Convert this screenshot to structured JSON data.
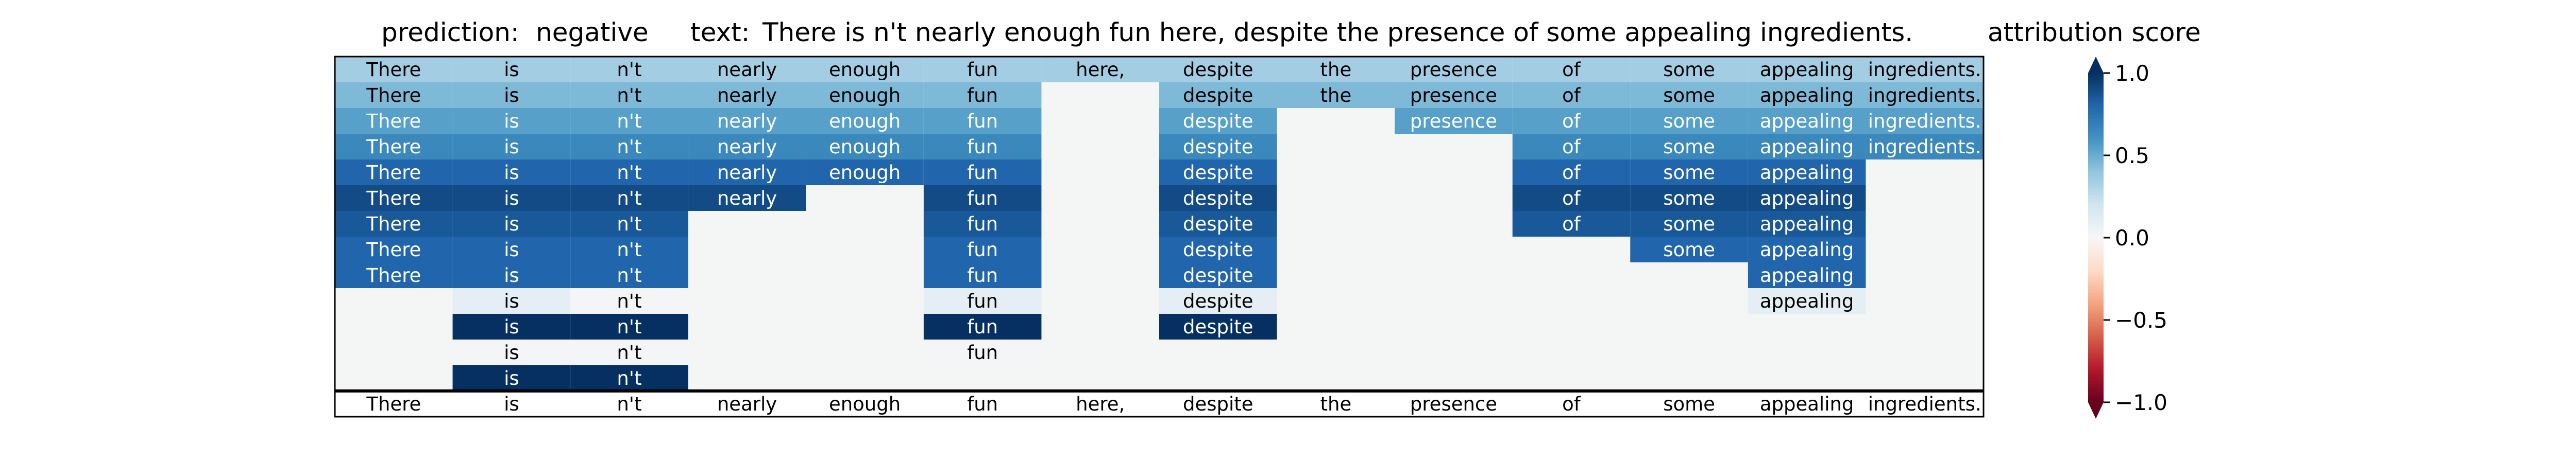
{
  "header": {
    "prediction_label": "prediction:",
    "prediction_value": "negative",
    "text_label": "text:",
    "text_value": "There is n't nearly enough fun here, despite the presence of some appealing ingredients.",
    "colorbar_title": "attribution score"
  },
  "chart_data": {
    "type": "heatmap",
    "title": "",
    "tokens": [
      "There",
      "is",
      "n't",
      "nearly",
      "enough",
      "fun",
      "here,",
      "despite",
      "the",
      "presence",
      "of",
      "some",
      "appealing",
      "ingredients."
    ],
    "rows": [
      [
        0.35,
        0.35,
        0.35,
        0.35,
        0.35,
        0.35,
        0.35,
        0.35,
        0.35,
        0.35,
        0.35,
        0.35,
        0.35,
        0.35
      ],
      [
        0.45,
        0.45,
        0.45,
        0.45,
        0.45,
        0.45,
        null,
        0.45,
        0.45,
        0.45,
        0.45,
        0.45,
        0.45,
        0.45
      ],
      [
        0.55,
        0.55,
        0.55,
        0.55,
        0.55,
        0.55,
        null,
        0.55,
        null,
        0.55,
        0.55,
        0.55,
        0.55,
        0.55
      ],
      [
        0.65,
        0.65,
        0.65,
        0.65,
        0.65,
        0.65,
        null,
        0.65,
        null,
        null,
        0.65,
        0.65,
        0.65,
        0.65
      ],
      [
        0.8,
        0.8,
        0.8,
        0.8,
        0.8,
        0.8,
        null,
        0.8,
        null,
        null,
        0.8,
        0.8,
        0.8,
        null
      ],
      [
        0.9,
        0.9,
        0.9,
        0.9,
        null,
        0.9,
        null,
        0.9,
        null,
        null,
        0.9,
        0.9,
        0.9,
        null
      ],
      [
        0.85,
        0.85,
        0.85,
        null,
        null,
        0.85,
        null,
        0.85,
        null,
        null,
        0.85,
        0.85,
        0.85,
        null
      ],
      [
        0.8,
        0.8,
        0.8,
        null,
        null,
        0.8,
        null,
        0.8,
        null,
        null,
        null,
        0.8,
        0.8,
        null
      ],
      [
        0.8,
        0.8,
        0.8,
        null,
        null,
        0.8,
        null,
        0.8,
        null,
        null,
        null,
        null,
        0.8,
        null
      ],
      [
        null,
        0.1,
        0.02,
        null,
        null,
        0.1,
        null,
        0.1,
        null,
        null,
        null,
        null,
        0.1,
        null
      ],
      [
        null,
        1.0,
        1.0,
        null,
        null,
        1.0,
        null,
        1.0,
        null,
        null,
        null,
        null,
        null,
        null
      ],
      [
        null,
        0.02,
        0.02,
        null,
        null,
        0.02,
        null,
        null,
        null,
        null,
        null,
        null,
        null,
        null
      ],
      [
        null,
        1.0,
        1.0,
        null,
        null,
        null,
        null,
        null,
        null,
        null,
        null,
        null,
        null,
        null
      ]
    ],
    "colorbar": {
      "range": [
        -1.0,
        1.0
      ],
      "ticks": [
        1.0,
        0.5,
        0.0,
        -0.5,
        -1.0
      ],
      "tick_labels": [
        "1.0",
        "0.5",
        "0.0",
        "−0.5",
        "−1.0"
      ],
      "colormap": "RdBu"
    },
    "empty_color": "#f4f5f5",
    "grid": false
  }
}
